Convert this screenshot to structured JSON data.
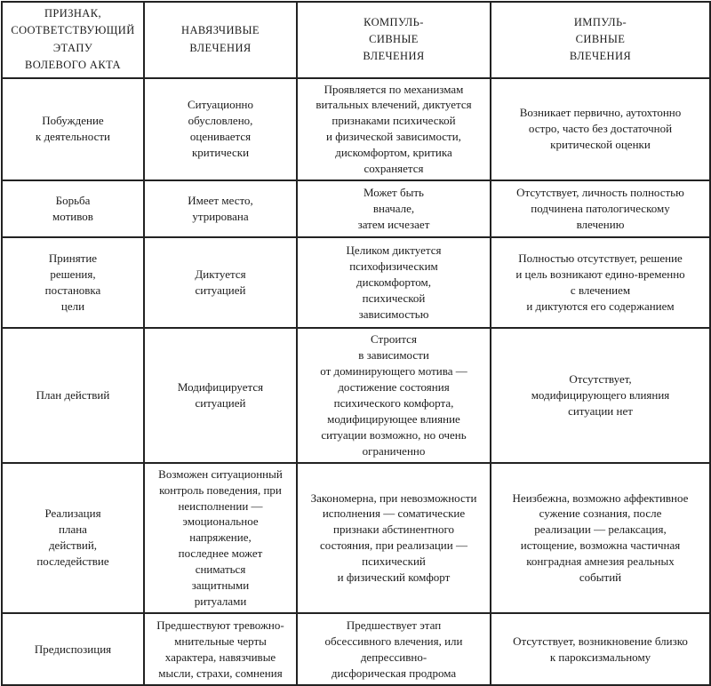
{
  "table": {
    "headers": {
      "feature": "ПРИЗНАК,\nСООТВЕТСТВУЮЩИЙ\nЭТАПУ\nВОЛЕВОГО АКТА",
      "obsessive": "НАВЯЗЧИВЫЕ\nВЛЕЧЕНИЯ",
      "compulsive": "КОМПУЛЬ-\nСИВНЫЕ\nВЛЕЧЕНИЯ",
      "impulsive": "ИМПУЛЬ-\nСИВНЫЕ\nВЛЕЧЕНИЯ"
    },
    "rows": [
      {
        "feature": "Побуждение\nк деятельности",
        "obsessive": "Ситуационно\nобусловлено,\nоценивается\nкритически",
        "compulsive": "Проявляется по механизмам\nвитальных влечений, диктуется\nпризнаками психической\nи физической зависимости,\nдискомфортом, критика\nсохраняется",
        "impulsive": "Возникает первично, аутохтонно\nостро, часто без достаточной\nкритической оценки"
      },
      {
        "feature": "Борьба\nмотивов",
        "obsessive": "Имеет место,\nутрирована",
        "compulsive": "Может быть\nвначале,\nзатем исчезает",
        "impulsive": "Отсутствует, личность полностью\nподчинена патологическому\nвлечению"
      },
      {
        "feature": "Принятие\nрешения,\nпостановка\nцели",
        "obsessive": "Диктуется\nситуацией",
        "compulsive": "Целиком диктуется\nпсихофизическим\nдискомфортом,\nпсихической\nзависимостью",
        "impulsive": "Полностью отсутствует, решение\nи цель возникают едино-временно\nс влечением\nи диктуются его содержанием"
      },
      {
        "feature": "План действий",
        "obsessive": "Модифицируется\nситуацией",
        "compulsive": "Строится\nв зависимости\nот доминирующего мотива —\nдостижение состояния\nпсихического комфорта,\nмодифицирующее влияние\nситуации возможно, но очень\nограниченно",
        "impulsive": "Отсутствует,\nмодифицирующего влияния\nситуации нет"
      },
      {
        "feature": "Реализация\nплана\nдействий,\nпоследействие",
        "obsessive": "Возможен ситуационный\nконтроль поведения, при\nнеисполнении —\nэмоциональное\nнапряжение,\nпоследнее может\nсниматься\nзащитными\nритуалами",
        "compulsive": "Закономерна, при невозможности\nисполнения — соматические\nпризнаки абстинентного\nсостояния, при реализации —\nпсихический\nи физический комфорт",
        "impulsive": "Неизбежна, возможно аффективное\nсужение сознания, после\nреализации — релаксация,\nистощение, возможна частичная\nконградная амнезия реальных\nсобытий"
      },
      {
        "feature": "Предиспозиция",
        "obsessive": "Предшествуют тревожно-\nмнительные черты\nхарактера, навязчивые\nмысли, страхи, сомнения",
        "compulsive": "Предшествует этап\nобсессивного влечения, или\nдепрессивно-\nдисфорическая продрома",
        "impulsive": "Отсутствует, возникновение близко\nк пароксизмальному"
      }
    ]
  }
}
